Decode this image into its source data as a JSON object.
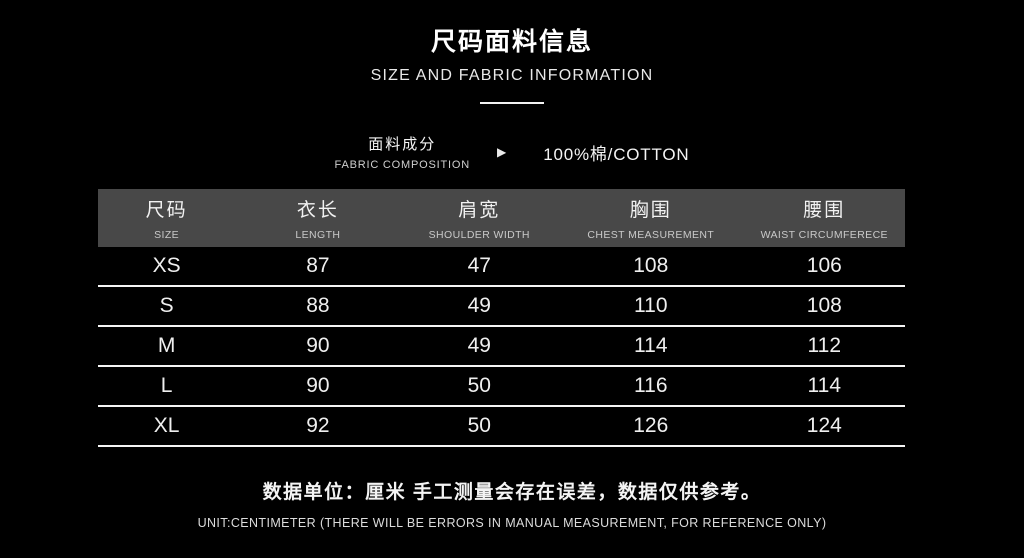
{
  "header": {
    "title_zh": "尺码面料信息",
    "title_en": "SIZE AND FABRIC INFORMATION"
  },
  "fabric": {
    "label_zh": "面料成分",
    "label_en": "FABRIC COMPOSITION",
    "arrow_icon": "▶",
    "value": "100%棉/COTTON"
  },
  "table": {
    "columns": [
      {
        "zh": "尺码",
        "en": "SIZE"
      },
      {
        "zh": "衣长",
        "en": "LENGTH"
      },
      {
        "zh": "肩宽",
        "en": "SHOULDER WIDTH"
      },
      {
        "zh": "胸围",
        "en": "CHEST MEASUREMENT"
      },
      {
        "zh": "腰围",
        "en": "WAIST CIRCUMFERECE"
      }
    ],
    "column_widths_pct": [
      17,
      20.5,
      19.5,
      23,
      20
    ],
    "rows": [
      [
        "XS",
        "87",
        "47",
        "108",
        "106"
      ],
      [
        "S",
        "88",
        "49",
        "110",
        "108"
      ],
      [
        "M",
        "90",
        "49",
        "114",
        "112"
      ],
      [
        "L",
        "90",
        "50",
        "116",
        "114"
      ],
      [
        "XL",
        "92",
        "50",
        "126",
        "124"
      ]
    ]
  },
  "footer": {
    "note_zh": "数据单位：厘米 手工测量会存在误差，数据仅供参考。",
    "note_en": "UNIT:CENTIMETER (THERE WILL BE ERRORS IN MANUAL MEASUREMENT, FOR REFERENCE ONLY)"
  },
  "colors": {
    "background": "#000000",
    "table_header_bg": "#484848",
    "divider": "#f5f5f5",
    "text_primary": "#ffffff"
  }
}
